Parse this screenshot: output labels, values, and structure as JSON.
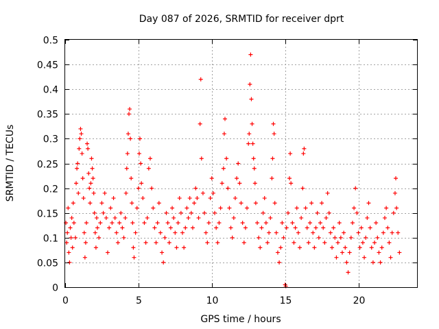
{
  "chart_data": {
    "type": "scatter",
    "title": "Day 087 of 2026, SRMTID for receiver dprt",
    "xlabel": "GPS time / hours",
    "ylabel": "SRMTID / TECUs",
    "xlim": [
      0,
      24
    ],
    "ylim": [
      0,
      0.5
    ],
    "xticks": [
      0,
      5,
      10,
      15,
      20
    ],
    "xtick_labels": [
      "0",
      "5",
      "10",
      "15",
      "20"
    ],
    "yticks": [
      0,
      0.05,
      0.1,
      0.15,
      0.2,
      0.25,
      0.3,
      0.35,
      0.4,
      0.45,
      0.5
    ],
    "ytick_labels": [
      "0",
      "0.05",
      "0.1",
      "0.15",
      "0.2",
      "0.25",
      "0.3",
      "0.35",
      "0.4",
      "0.45",
      "0.5"
    ],
    "grid": true,
    "marker": "+",
    "series": [
      {
        "name": "SRMTID",
        "color": "#ff0000",
        "points": [
          [
            0.05,
            0.13
          ],
          [
            0.1,
            0.09
          ],
          [
            0.15,
            0.11
          ],
          [
            0.2,
            0.16
          ],
          [
            0.25,
            0.07
          ],
          [
            0.3,
            0.05
          ],
          [
            0.35,
            0.12
          ],
          [
            0.4,
            0.1
          ],
          [
            0.45,
            0.14
          ],
          [
            0.5,
            0.08
          ],
          [
            0.55,
            0.17
          ],
          [
            0.6,
            0.13
          ],
          [
            0.7,
            0.1
          ],
          [
            0.75,
            0.21
          ],
          [
            0.8,
            0.24
          ],
          [
            0.85,
            0.25
          ],
          [
            0.9,
            0.19
          ],
          [
            0.95,
            0.28
          ],
          [
            1.0,
            0.3
          ],
          [
            1.05,
            0.32
          ],
          [
            1.1,
            0.31
          ],
          [
            1.15,
            0.27
          ],
          [
            1.2,
            0.22
          ],
          [
            1.25,
            0.18
          ],
          [
            1.3,
            0.11
          ],
          [
            1.35,
            0.06
          ],
          [
            1.4,
            0.09
          ],
          [
            1.45,
            0.13
          ],
          [
            1.5,
            0.29
          ],
          [
            1.55,
            0.28
          ],
          [
            1.6,
            0.23
          ],
          [
            1.65,
            0.2
          ],
          [
            1.7,
            0.17
          ],
          [
            1.75,
            0.21
          ],
          [
            1.8,
            0.26
          ],
          [
            1.85,
            0.24
          ],
          [
            1.9,
            0.22
          ],
          [
            1.95,
            0.19
          ],
          [
            2.0,
            0.15
          ],
          [
            2.05,
            0.11
          ],
          [
            2.1,
            0.08
          ],
          [
            2.15,
            0.14
          ],
          [
            2.2,
            0.12
          ],
          [
            2.3,
            0.1
          ],
          [
            2.4,
            0.13
          ],
          [
            2.5,
            0.17
          ],
          [
            2.6,
            0.15
          ],
          [
            2.7,
            0.19
          ],
          [
            2.8,
            0.14
          ],
          [
            2.9,
            0.07
          ],
          [
            3.0,
            0.12
          ],
          [
            3.1,
            0.16
          ],
          [
            3.2,
            0.13
          ],
          [
            3.3,
            0.18
          ],
          [
            3.4,
            0.14
          ],
          [
            3.5,
            0.11
          ],
          [
            3.6,
            0.09
          ],
          [
            3.7,
            0.13
          ],
          [
            3.8,
            0.15
          ],
          [
            3.9,
            0.12
          ],
          [
            4.0,
            0.1
          ],
          [
            4.1,
            0.14
          ],
          [
            4.15,
            0.19
          ],
          [
            4.2,
            0.24
          ],
          [
            4.25,
            0.27
          ],
          [
            4.3,
            0.31
          ],
          [
            4.35,
            0.35
          ],
          [
            4.4,
            0.36
          ],
          [
            4.45,
            0.3
          ],
          [
            4.5,
            0.22
          ],
          [
            4.55,
            0.17
          ],
          [
            4.6,
            0.13
          ],
          [
            4.65,
            0.08
          ],
          [
            4.7,
            0.06
          ],
          [
            4.8,
            0.11
          ],
          [
            4.9,
            0.16
          ],
          [
            5.0,
            0.2
          ],
          [
            5.05,
            0.27
          ],
          [
            5.1,
            0.3
          ],
          [
            5.15,
            0.25
          ],
          [
            5.2,
            0.21
          ],
          [
            5.3,
            0.18
          ],
          [
            5.4,
            0.13
          ],
          [
            5.5,
            0.09
          ],
          [
            5.6,
            0.14
          ],
          [
            5.7,
            0.24
          ],
          [
            5.8,
            0.26
          ],
          [
            5.9,
            0.2
          ],
          [
            6.0,
            0.16
          ],
          [
            6.1,
            0.12
          ],
          [
            6.2,
            0.09
          ],
          [
            6.3,
            0.13
          ],
          [
            6.4,
            0.17
          ],
          [
            6.5,
            0.11
          ],
          [
            6.6,
            0.07
          ],
          [
            6.7,
            0.05
          ],
          [
            6.8,
            0.1
          ],
          [
            6.9,
            0.15
          ],
          [
            7.0,
            0.13
          ],
          [
            7.1,
            0.09
          ],
          [
            7.2,
            0.12
          ],
          [
            7.3,
            0.16
          ],
          [
            7.4,
            0.14
          ],
          [
            7.5,
            0.11
          ],
          [
            7.6,
            0.08
          ],
          [
            7.7,
            0.13
          ],
          [
            7.8,
            0.18
          ],
          [
            7.9,
            0.15
          ],
          [
            8.0,
            0.11
          ],
          [
            8.1,
            0.08
          ],
          [
            8.2,
            0.12
          ],
          [
            8.3,
            0.16
          ],
          [
            8.4,
            0.14
          ],
          [
            8.5,
            0.18
          ],
          [
            8.6,
            0.15
          ],
          [
            8.7,
            0.12
          ],
          [
            8.8,
            0.17
          ],
          [
            8.9,
            0.2
          ],
          [
            9.0,
            0.18
          ],
          [
            9.1,
            0.14
          ],
          [
            9.2,
            0.33
          ],
          [
            9.25,
            0.42
          ],
          [
            9.3,
            0.26
          ],
          [
            9.4,
            0.19
          ],
          [
            9.5,
            0.15
          ],
          [
            9.6,
            0.11
          ],
          [
            9.7,
            0.09
          ],
          [
            9.8,
            0.13
          ],
          [
            9.9,
            0.18
          ],
          [
            10.0,
            0.22
          ],
          [
            10.1,
            0.19
          ],
          [
            10.2,
            0.15
          ],
          [
            10.3,
            0.12
          ],
          [
            10.4,
            0.09
          ],
          [
            10.5,
            0.13
          ],
          [
            10.6,
            0.16
          ],
          [
            10.7,
            0.21
          ],
          [
            10.8,
            0.24
          ],
          [
            10.85,
            0.31
          ],
          [
            10.9,
            0.34
          ],
          [
            11.0,
            0.26
          ],
          [
            11.1,
            0.2
          ],
          [
            11.2,
            0.16
          ],
          [
            11.3,
            0.12
          ],
          [
            11.4,
            0.1
          ],
          [
            11.5,
            0.14
          ],
          [
            11.6,
            0.18
          ],
          [
            11.7,
            0.22
          ],
          [
            11.8,
            0.25
          ],
          [
            11.9,
            0.21
          ],
          [
            12.0,
            0.17
          ],
          [
            12.1,
            0.13
          ],
          [
            12.2,
            0.09
          ],
          [
            12.3,
            0.12
          ],
          [
            12.4,
            0.16
          ],
          [
            12.5,
            0.29
          ],
          [
            12.55,
            0.31
          ],
          [
            12.6,
            0.41
          ],
          [
            12.65,
            0.47
          ],
          [
            12.7,
            0.38
          ],
          [
            12.75,
            0.33
          ],
          [
            12.8,
            0.29
          ],
          [
            12.85,
            0.26
          ],
          [
            12.9,
            0.24
          ],
          [
            12.95,
            0.21
          ],
          [
            13.0,
            0.17
          ],
          [
            13.1,
            0.13
          ],
          [
            13.2,
            0.1
          ],
          [
            13.3,
            0.08
          ],
          [
            13.4,
            0.12
          ],
          [
            13.5,
            0.15
          ],
          [
            13.6,
            0.18
          ],
          [
            13.7,
            0.13
          ],
          [
            13.8,
            0.09
          ],
          [
            13.9,
            0.11
          ],
          [
            14.0,
            0.14
          ],
          [
            14.1,
            0.22
          ],
          [
            14.15,
            0.26
          ],
          [
            14.2,
            0.33
          ],
          [
            14.25,
            0.31
          ],
          [
            14.3,
            0.17
          ],
          [
            14.4,
            0.11
          ],
          [
            14.5,
            0.07
          ],
          [
            14.6,
            0.05
          ],
          [
            14.7,
            0.08
          ],
          [
            14.8,
            0.13
          ],
          [
            14.9,
            0.1
          ],
          [
            15.0,
            0.005
          ],
          [
            15.05,
            0.002
          ],
          [
            15.1,
            0.12
          ],
          [
            15.2,
            0.15
          ],
          [
            15.3,
            0.22
          ],
          [
            15.35,
            0.27
          ],
          [
            15.4,
            0.21
          ],
          [
            15.5,
            0.13
          ],
          [
            15.6,
            0.09
          ],
          [
            15.7,
            0.12
          ],
          [
            15.8,
            0.16
          ],
          [
            15.9,
            0.11
          ],
          [
            16.0,
            0.08
          ],
          [
            16.1,
            0.14
          ],
          [
            16.2,
            0.2
          ],
          [
            16.25,
            0.27
          ],
          [
            16.3,
            0.28
          ],
          [
            16.4,
            0.16
          ],
          [
            16.5,
            0.12
          ],
          [
            16.6,
            0.09
          ],
          [
            16.7,
            0.13
          ],
          [
            16.8,
            0.17
          ],
          [
            16.9,
            0.11
          ],
          [
            17.0,
            0.08
          ],
          [
            17.1,
            0.12
          ],
          [
            17.2,
            0.15
          ],
          [
            17.3,
            0.1
          ],
          [
            17.4,
            0.13
          ],
          [
            17.5,
            0.17
          ],
          [
            17.6,
            0.12
          ],
          [
            17.7,
            0.09
          ],
          [
            17.8,
            0.14
          ],
          [
            17.9,
            0.19
          ],
          [
            18.0,
            0.15
          ],
          [
            18.1,
            0.11
          ],
          [
            18.2,
            0.08
          ],
          [
            18.3,
            0.12
          ],
          [
            18.4,
            0.1
          ],
          [
            18.5,
            0.06
          ],
          [
            18.6,
            0.09
          ],
          [
            18.7,
            0.13
          ],
          [
            18.8,
            0.1
          ],
          [
            18.9,
            0.07
          ],
          [
            19.0,
            0.11
          ],
          [
            19.1,
            0.08
          ],
          [
            19.2,
            0.05
          ],
          [
            19.3,
            0.03
          ],
          [
            19.4,
            0.07
          ],
          [
            19.5,
            0.1
          ],
          [
            19.6,
            0.13
          ],
          [
            19.7,
            0.16
          ],
          [
            19.8,
            0.2
          ],
          [
            19.9,
            0.15
          ],
          [
            20.0,
            0.11
          ],
          [
            20.1,
            0.08
          ],
          [
            20.2,
            0.12
          ],
          [
            20.3,
            0.09
          ],
          [
            20.4,
            0.06
          ],
          [
            20.5,
            0.1
          ],
          [
            20.6,
            0.14
          ],
          [
            20.7,
            0.17
          ],
          [
            20.8,
            0.12
          ],
          [
            20.9,
            0.08
          ],
          [
            21.0,
            0.05
          ],
          [
            21.1,
            0.09
          ],
          [
            21.2,
            0.13
          ],
          [
            21.3,
            0.1
          ],
          [
            21.4,
            0.07
          ],
          [
            21.5,
            0.05
          ],
          [
            21.6,
            0.08
          ],
          [
            21.7,
            0.11
          ],
          [
            21.8,
            0.14
          ],
          [
            21.9,
            0.16
          ],
          [
            22.0,
            0.12
          ],
          [
            22.1,
            0.09
          ],
          [
            22.2,
            0.06
          ],
          [
            22.3,
            0.11
          ],
          [
            22.4,
            0.15
          ],
          [
            22.5,
            0.19
          ],
          [
            22.55,
            0.22
          ],
          [
            22.6,
            0.16
          ],
          [
            22.7,
            0.11
          ],
          [
            22.8,
            0.07
          ]
        ]
      }
    ]
  }
}
